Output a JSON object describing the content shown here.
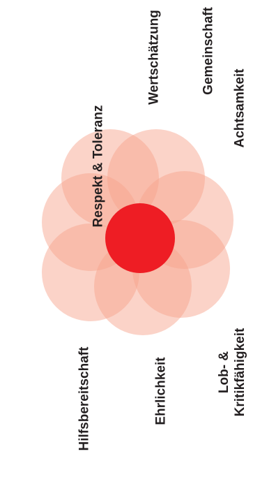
{
  "center_color": "#ee1d24",
  "petal_color": "#f7a48b",
  "text_color": "#231f20",
  "labels": {
    "respekt": "Respekt & Toleranz",
    "wertschaetzung": "Wertschätzung",
    "gemeinschaft": "Gemeinschaft",
    "achtsamkeit": "Achtsamkeit",
    "lob_line1": "Lob- &",
    "lob_line2": "Kritikfähigkeit",
    "ehrlichkeit": "Ehrlichkeit",
    "hilfsbereitschaft": "Hilfsbereitschaft"
  }
}
